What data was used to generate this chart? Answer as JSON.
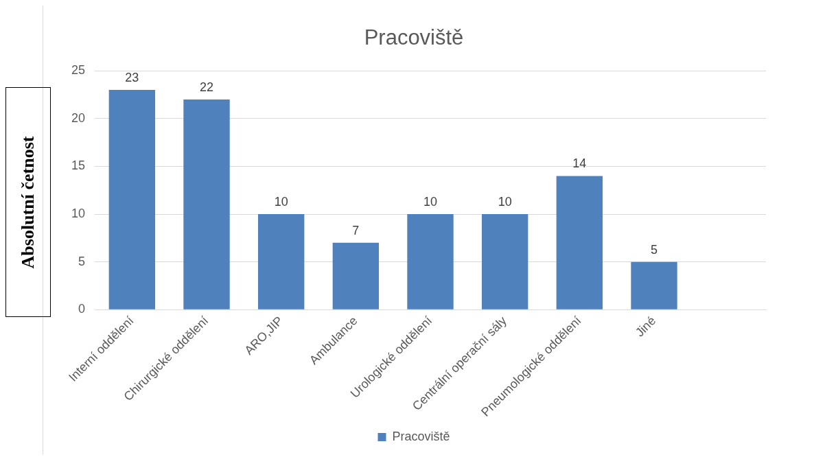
{
  "chart_data": {
    "type": "bar",
    "title": "Pracoviště",
    "ylabel": "Absolutní četnost",
    "categories": [
      "Interní oddělení",
      "Chirurgické oddělení",
      "ARO,JIP",
      "Ambulance",
      "Urologické oddělení",
      "Centrální operační sály",
      "Pneumologické oddělení",
      "Jiné",
      null
    ],
    "series": [
      {
        "name": "Pracoviště",
        "color": "#4f81bd",
        "values": [
          23,
          22,
          10,
          7,
          10,
          10,
          14,
          5,
          null
        ]
      }
    ],
    "ylim": [
      0,
      25
    ],
    "yticks": [
      0,
      5,
      10,
      15,
      20,
      25
    ],
    "grid": "y",
    "legend": "bottom",
    "data_labels": true
  }
}
